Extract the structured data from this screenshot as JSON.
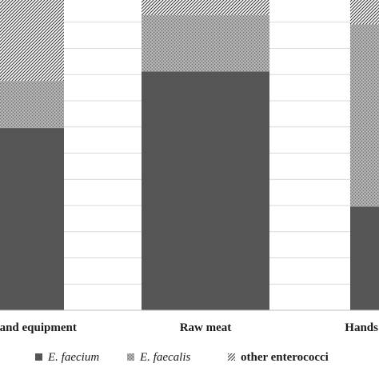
{
  "chart_data": {
    "type": "bar",
    "stacked": true,
    "percent_stacked": true,
    "categories": [
      "Surfaces and equipment",
      "Raw meat",
      "Hands"
    ],
    "category_labels_visible": [
      "s and equipment",
      "Raw meat",
      "Hands"
    ],
    "series": [
      {
        "name": "E. faecium",
        "values": [
          58,
          76,
          33
        ],
        "color": "#555555",
        "pattern": "solid"
      },
      {
        "name": "E. faecalis",
        "values": [
          15,
          18,
          58
        ],
        "color": "#999999",
        "pattern": "dots"
      },
      {
        "name": "other enterococci",
        "values": [
          27,
          6,
          9
        ],
        "color": "#ffffff",
        "pattern": "diagonal-hatch"
      }
    ],
    "ylim": [
      0,
      100
    ],
    "grid": true,
    "legend_position": "bottom"
  }
}
